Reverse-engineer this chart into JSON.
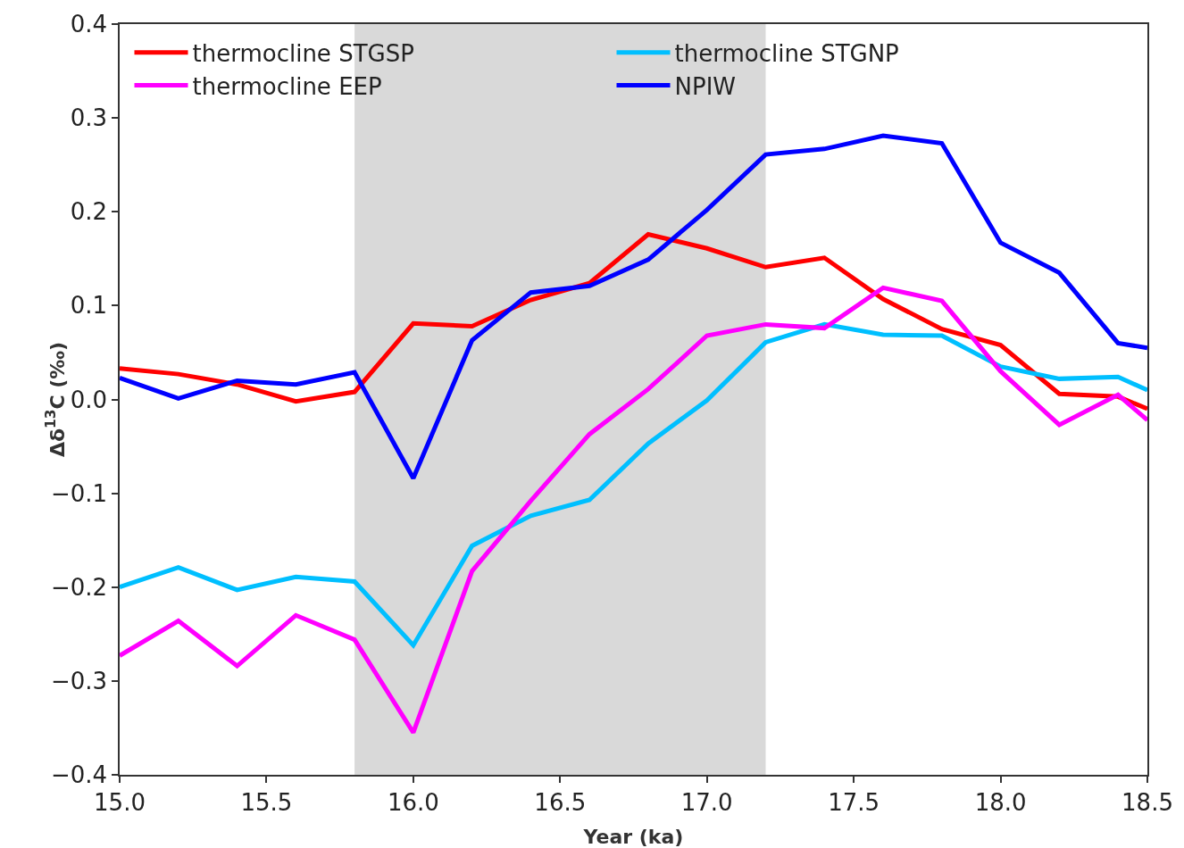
{
  "chart_data": {
    "type": "line",
    "xlabel": "Year (ka)",
    "ylabel": "Δδ$^{13}$C (‰)",
    "x": [
      15.0,
      15.2,
      15.4,
      15.6,
      15.8,
      16.0,
      16.2,
      16.4,
      16.6,
      16.8,
      17.0,
      17.2,
      17.4,
      17.6,
      17.8,
      18.0,
      18.2,
      18.4,
      18.5
    ],
    "series": [
      {
        "name": "thermocline STGSP",
        "color": "#ff0000",
        "values": [
          0.033,
          0.027,
          0.016,
          -0.002,
          0.008,
          0.081,
          0.078,
          0.106,
          0.124,
          0.176,
          0.161,
          0.141,
          0.151,
          0.107,
          0.075,
          0.058,
          0.006,
          0.003,
          -0.01
        ]
      },
      {
        "name": "thermocline STGNP",
        "color": "#00bfff",
        "values": [
          -0.2,
          -0.179,
          -0.203,
          -0.189,
          -0.194,
          -0.262,
          -0.156,
          -0.124,
          -0.107,
          -0.047,
          -0.001,
          0.061,
          0.08,
          0.069,
          0.068,
          0.035,
          0.022,
          0.024,
          0.01
        ]
      },
      {
        "name": "thermocline EEP",
        "color": "#ff00ff",
        "values": [
          -0.273,
          -0.236,
          -0.284,
          -0.23,
          -0.256,
          -0.355,
          -0.183,
          -0.108,
          -0.037,
          0.011,
          0.068,
          0.08,
          0.076,
          0.119,
          0.105,
          0.03,
          -0.027,
          0.005,
          -0.022
        ]
      },
      {
        "name": "NPIW",
        "color": "#0000ff",
        "values": [
          0.023,
          0.001,
          0.02,
          0.016,
          0.029,
          -0.084,
          0.063,
          0.114,
          0.121,
          0.149,
          0.202,
          0.261,
          0.267,
          0.281,
          0.273,
          0.167,
          0.135,
          0.06,
          0.055
        ]
      }
    ],
    "xlim": [
      15.0,
      18.5
    ],
    "xticks": [
      {
        "value": 15,
        "label": "15.0"
      },
      {
        "value": 15.5,
        "label": "15.5"
      },
      {
        "value": 16,
        "label": "16.0"
      },
      {
        "value": 16.5,
        "label": "16.5"
      },
      {
        "value": 17,
        "label": "17.0"
      },
      {
        "value": 17.5,
        "label": "17.5"
      },
      {
        "value": 18,
        "label": "18.0"
      },
      {
        "value": 18.5,
        "label": "18.5"
      }
    ],
    "ylim": [
      -0.4,
      0.4
    ],
    "yticks": [
      {
        "value": -0.4,
        "label": "−0.4"
      },
      {
        "value": -0.3,
        "label": "−0.3"
      },
      {
        "value": -0.2,
        "label": "−0.2"
      },
      {
        "value": -0.1,
        "label": "−0.1"
      },
      {
        "value": 0,
        "label": "0.0"
      },
      {
        "value": 0.1,
        "label": "0.1"
      },
      {
        "value": 0.2,
        "label": "0.2"
      },
      {
        "value": 0.3,
        "label": "0.3"
      },
      {
        "value": 0.4,
        "label": "0.4"
      }
    ],
    "bands": [
      {
        "axis": "x",
        "from": 15.8,
        "to": 17.2,
        "color": "#d9d9d9"
      }
    ],
    "grid": false,
    "legend": "top left",
    "line_style": "solid",
    "marker": "none"
  }
}
